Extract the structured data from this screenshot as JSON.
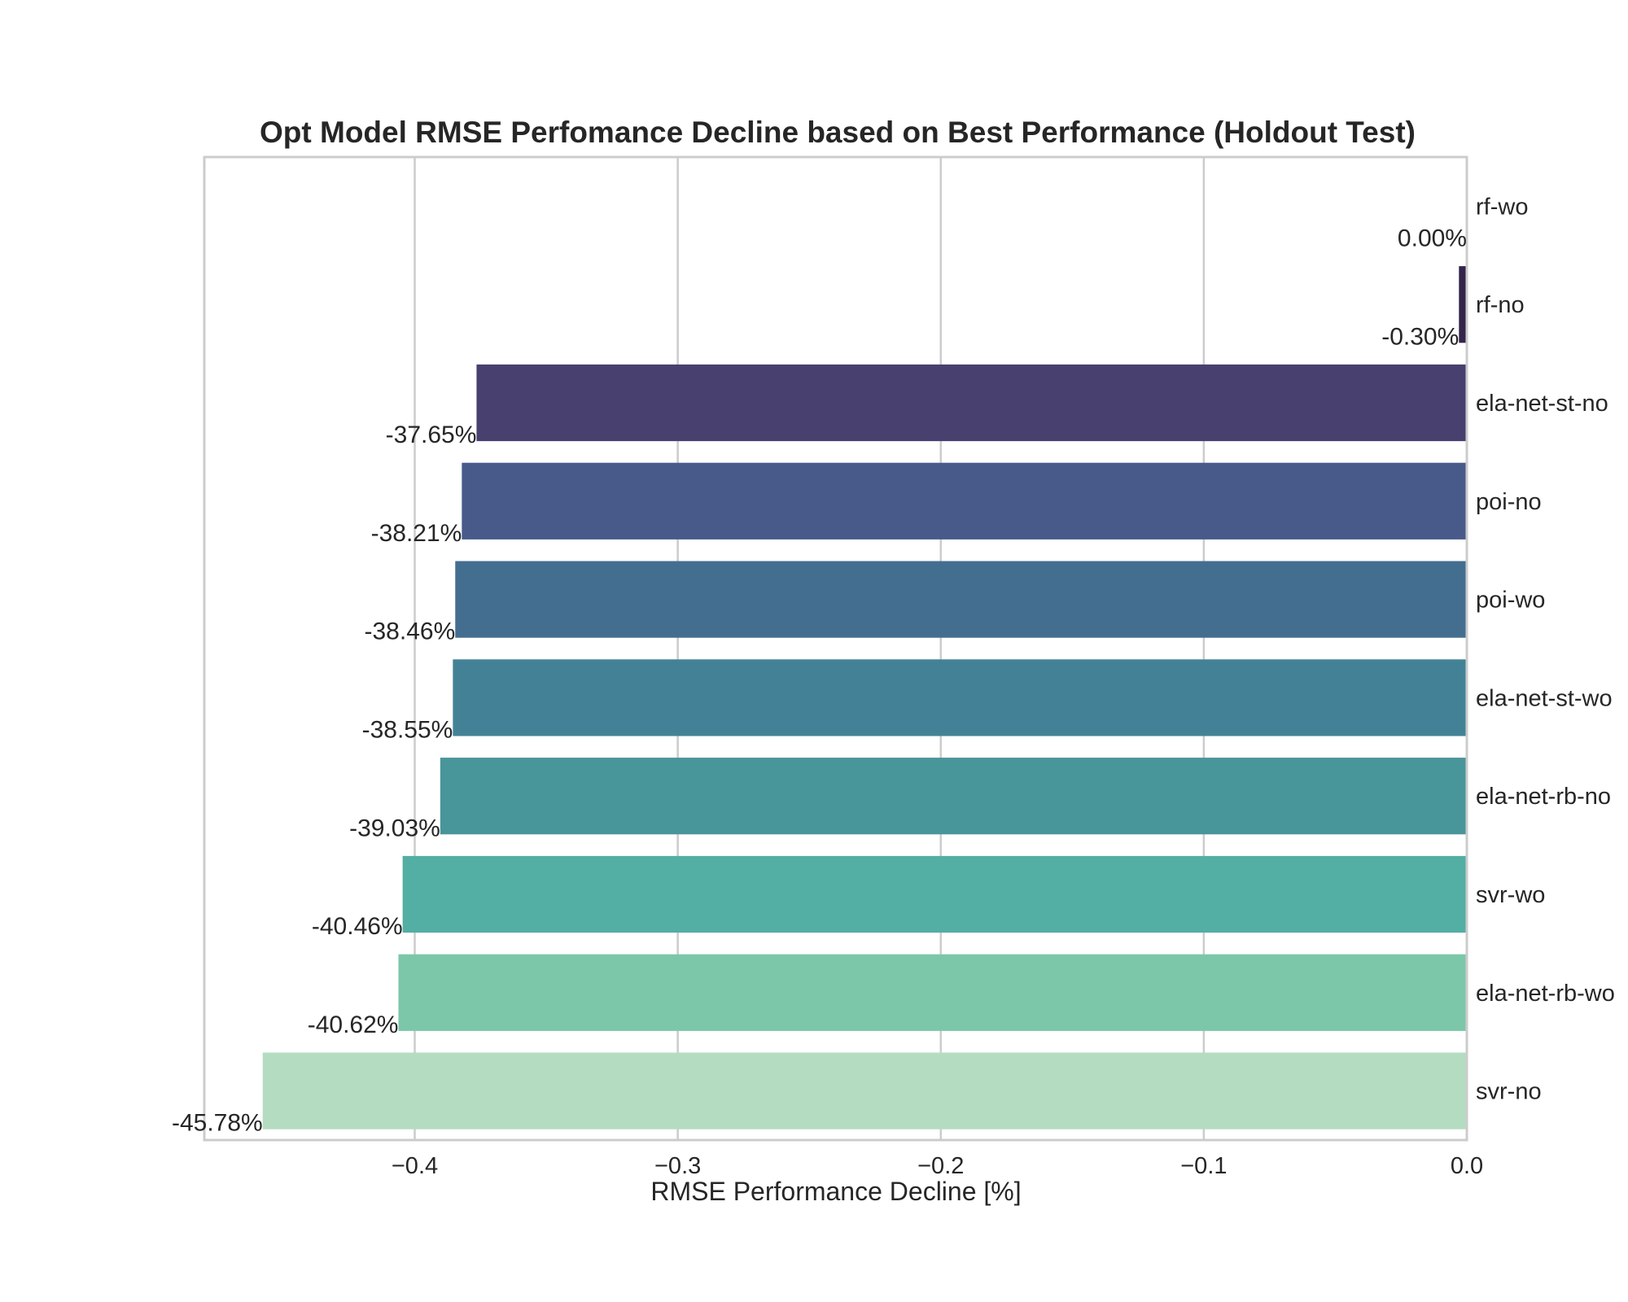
{
  "chart_data": {
    "type": "bar",
    "orientation": "horizontal",
    "title": "Opt Model RMSE Perfomance Decline based on Best Performance (Holdout Test)",
    "xlabel": "RMSE Performance Decline [%]",
    "ylabel": "",
    "xlim": [
      -0.48,
      0.0
    ],
    "xticks": [
      -0.4,
      -0.3,
      -0.2,
      -0.1,
      0.0
    ],
    "xtick_labels": [
      "−0.4",
      "−0.3",
      "−0.2",
      "−0.1",
      "0.0"
    ],
    "grid": true,
    "category_labels_position": "right",
    "categories": [
      "rf-wo",
      "rf-no",
      "ela-net-st-no",
      "poi-no",
      "poi-wo",
      "ela-net-st-wo",
      "ela-net-rb-no",
      "svr-wo",
      "ela-net-rb-wo",
      "svr-no"
    ],
    "values": [
      0.0,
      -0.003,
      -0.3765,
      -0.3821,
      -0.3846,
      -0.3855,
      -0.3903,
      -0.4046,
      -0.4062,
      -0.4578
    ],
    "data_labels": [
      "0.00%",
      "-0.30%",
      "-37.65%",
      "-38.21%",
      "-38.46%",
      "-38.55%",
      "-39.03%",
      "-40.46%",
      "-40.62%",
      "-45.78%"
    ],
    "colors": [
      "#2a1a3d",
      "#34254c",
      "#48406f",
      "#485a8a",
      "#446e90",
      "#438296",
      "#48959a",
      "#53aea3",
      "#7cc7a9",
      "#b4dcc1"
    ]
  }
}
